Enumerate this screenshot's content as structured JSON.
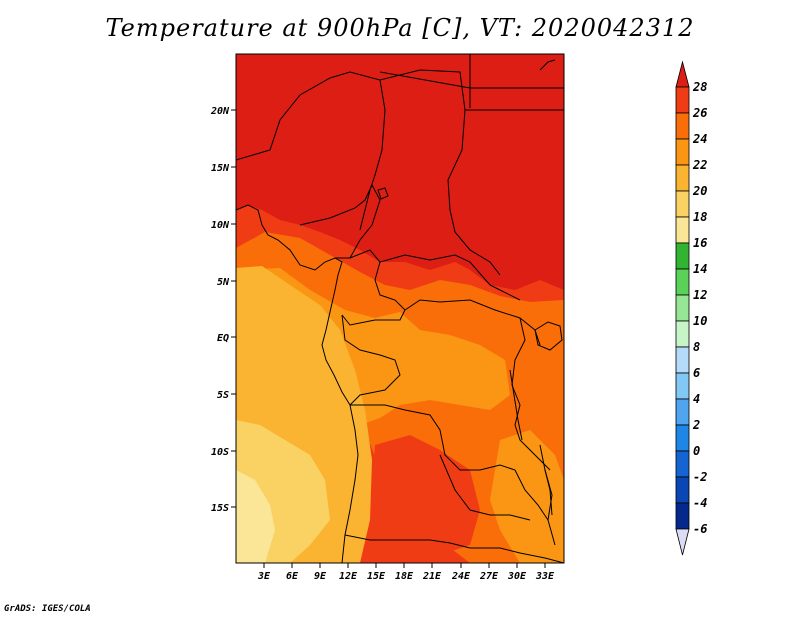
{
  "title": "Temperature at 900hPa [C], VT: 2020042312",
  "credit": "GrADS: IGES/COLA",
  "map": {
    "lat_ticks": [
      "20N",
      "15N",
      "10N",
      "5N",
      "EQ",
      "5S",
      "10S",
      "15S"
    ],
    "lon_ticks": [
      "3E",
      "6E",
      "9E",
      "12E",
      "15E",
      "18E",
      "21E",
      "24E",
      "27E",
      "30E",
      "33E"
    ]
  },
  "colorbar": {
    "labels": [
      "28",
      "26",
      "24",
      "22",
      "20",
      "18",
      "16",
      "14",
      "12",
      "10",
      "8",
      "6",
      "4",
      "2",
      "0",
      "-2",
      "-4",
      "-6"
    ],
    "colors": {
      "above_28": "#dc1e14",
      "26_28": "#f03c14",
      "24_26": "#fa6e0a",
      "22_24": "#fa9614",
      "20_22": "#fab432",
      "18_20": "#fad264",
      "16_18": "#fae696",
      "14_16": "#32b432",
      "12_14": "#5ad25a",
      "10_12": "#96e696",
      "8_10": "#c8f5c8",
      "6_8": "#b4dcfa",
      "4_6": "#82c8f5",
      "2_4": "#50a5f0",
      "0_2": "#1e87e6",
      "-2_0": "#1464d2",
      "-4_-2": "#0a46b4",
      "-6_-4": "#05288c",
      "below_-6": "#dcdcf5"
    }
  }
}
